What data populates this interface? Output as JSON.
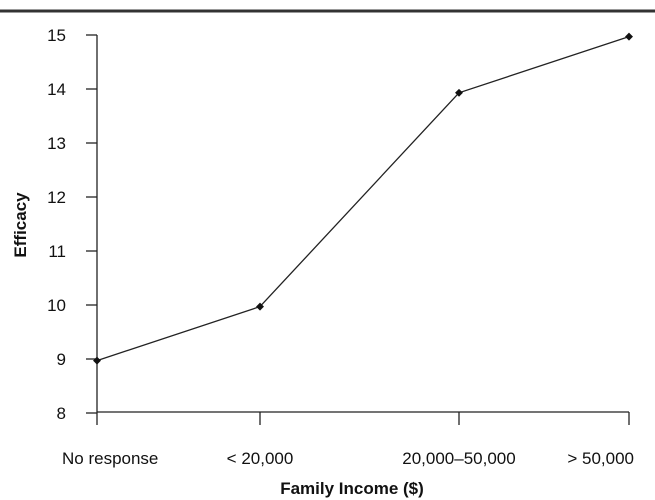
{
  "chart_data": {
    "type": "line",
    "categories": [
      "No response",
      "< 20,000",
      "20,000–50,000",
      "> 50,000"
    ],
    "values": [
      8.97,
      9.97,
      13.93,
      14.97
    ],
    "title": "",
    "xlabel": "Family Income ($)",
    "ylabel": "Efficacy",
    "ylim": [
      8,
      15
    ],
    "yticks": [
      "8",
      "9",
      "10",
      "11",
      "12",
      "13",
      "14",
      "15"
    ],
    "grid": false,
    "legend": "none",
    "colors": {
      "line": "#222222",
      "marker": "#111111",
      "axis": "#222222",
      "top_rule": "#333333"
    }
  }
}
